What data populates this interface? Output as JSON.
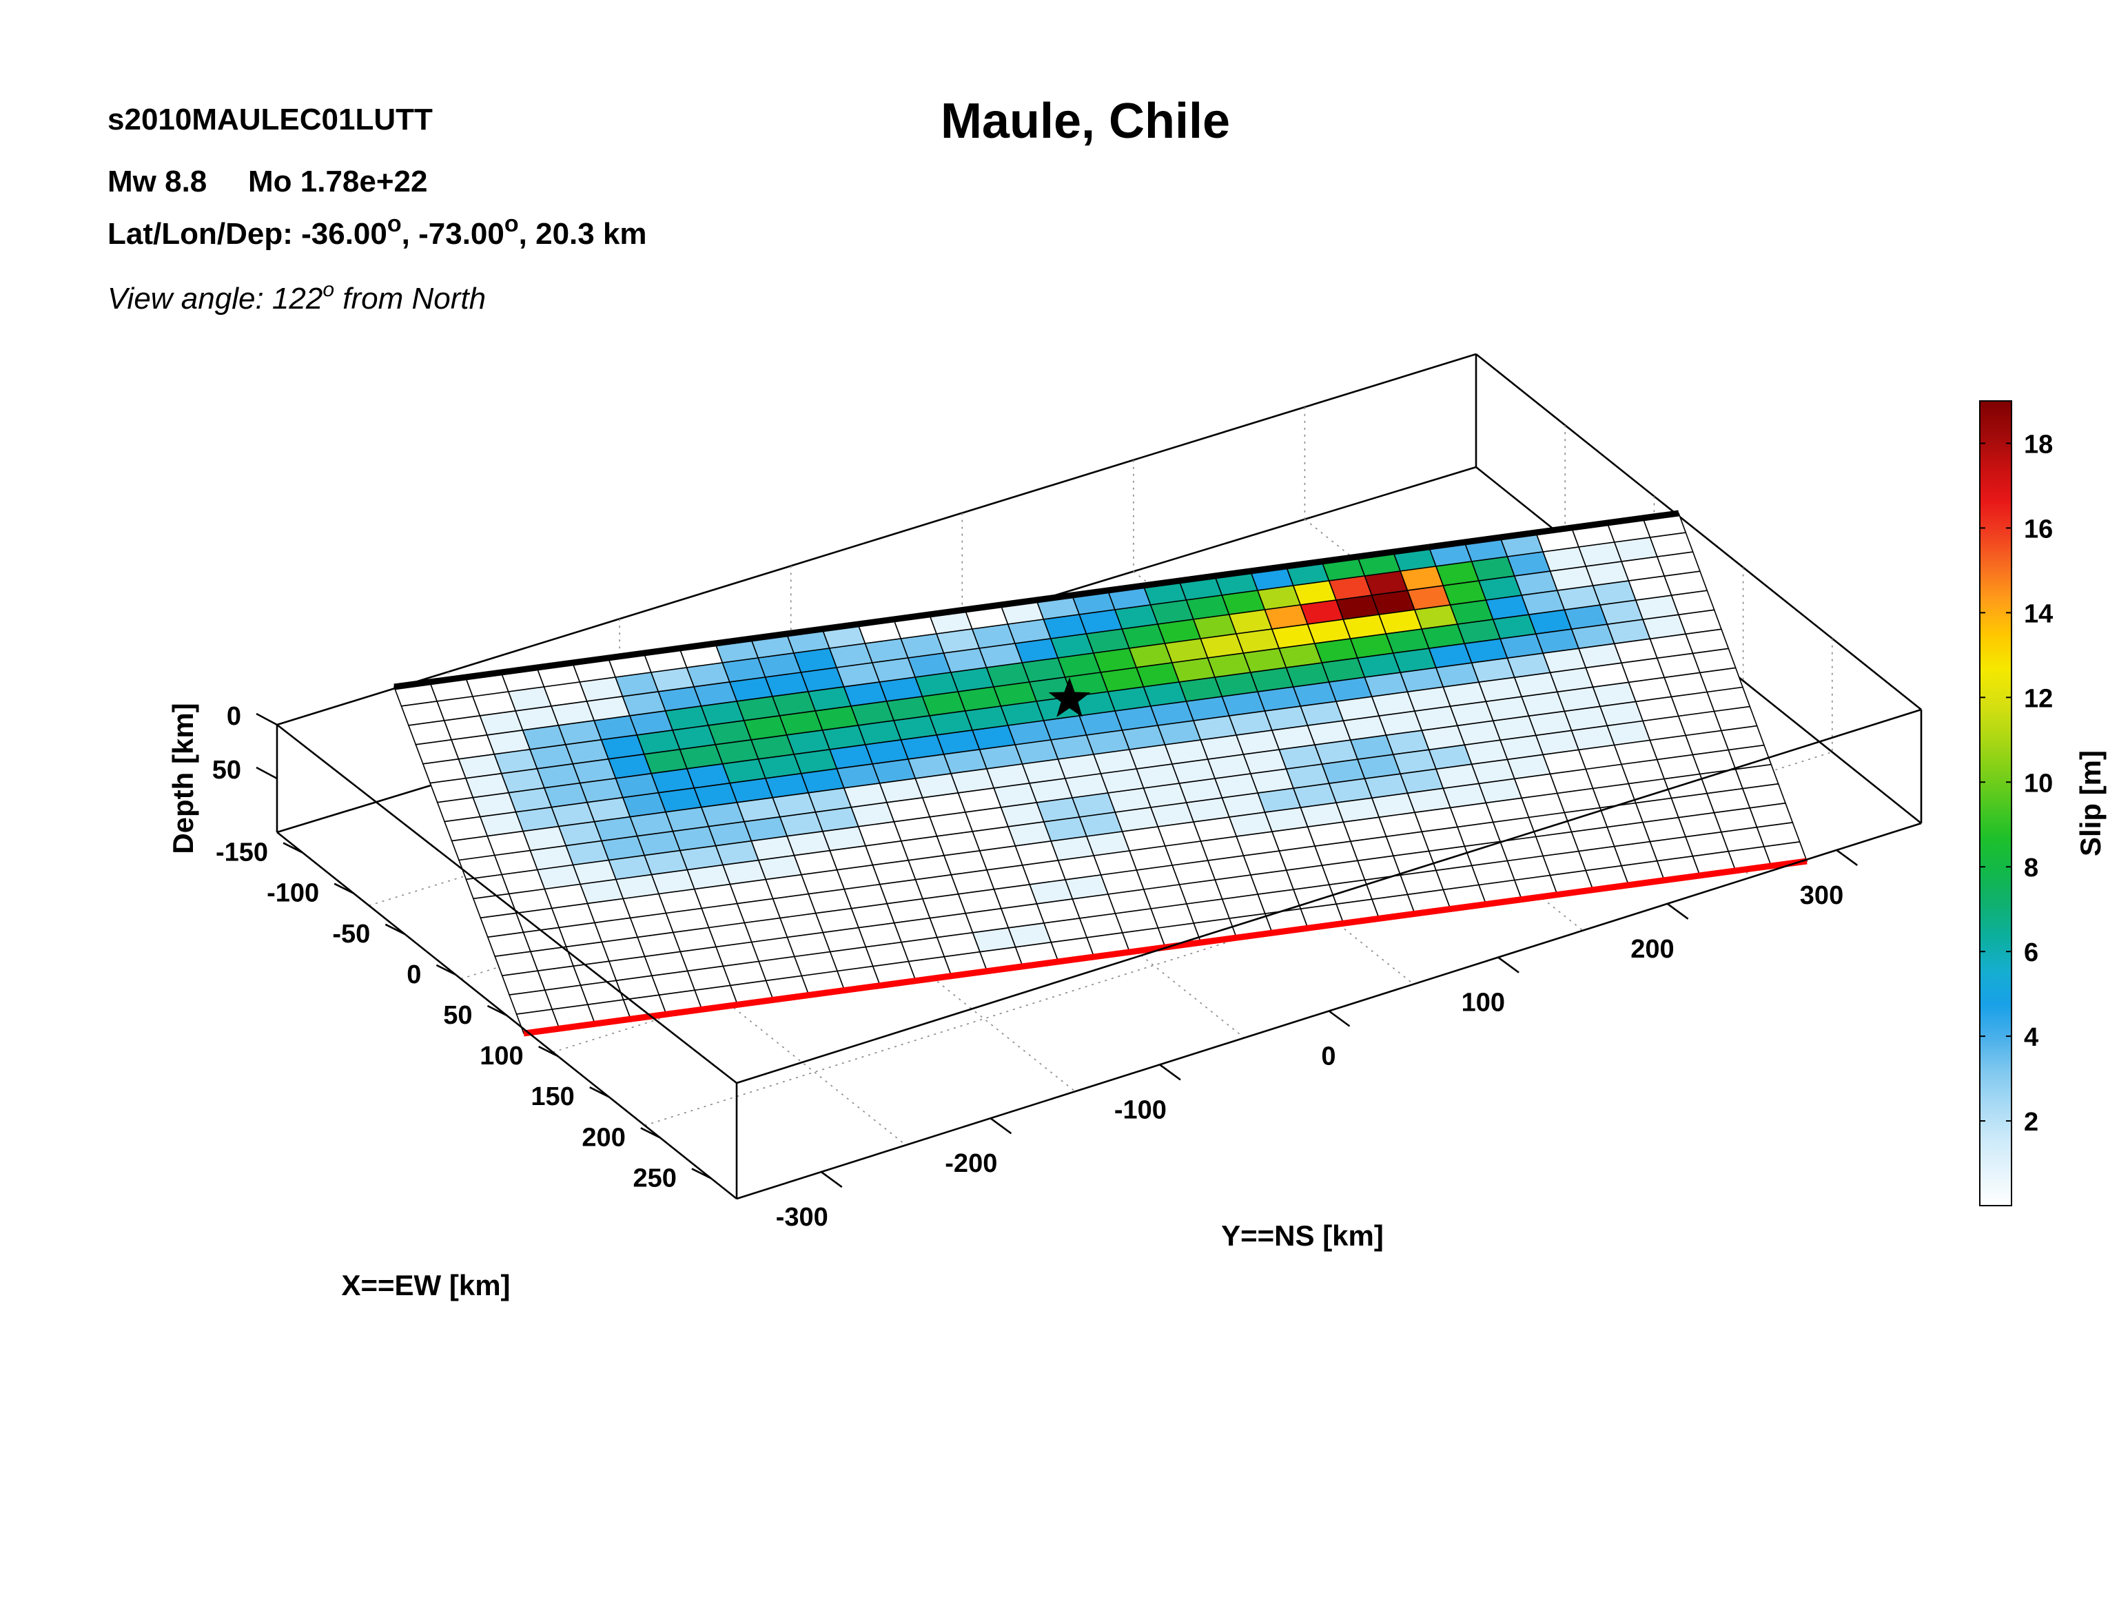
{
  "header": {
    "event_id": "s2010MAULEC01LUTT",
    "mw": "Mw 8.8",
    "mo": "Mo 1.78e+22",
    "location_prefix": "Lat/Lon/Dep: ",
    "lat": "-36.00",
    "lon": "-73.00",
    "dep": "20.3 km",
    "deg_symbol": "o",
    "view_prefix": "View angle: 122",
    "view_sup": "o",
    "view_suffix": " from North"
  },
  "chart_data": {
    "type": "heatmap",
    "title": "Maule, Chile",
    "xlabel": "X==EW [km]",
    "ylabel": "Y==NS [km]",
    "zlabel": "Depth [km]",
    "x_ticks": [
      "-150",
      "-100",
      "-50",
      "0",
      "50",
      "100",
      "150",
      "200",
      "250"
    ],
    "y_ticks": [
      "-300",
      "-200",
      "-100",
      "0",
      "100",
      "200",
      "300"
    ],
    "z_ticks": [
      "0",
      "50"
    ],
    "colorbar": {
      "label": "Slip [m]",
      "min": 0,
      "max": 19,
      "ticks": [
        "2",
        "4",
        "6",
        "8",
        "10",
        "12",
        "14",
        "16",
        "18"
      ],
      "colors": [
        "#ffffff",
        "#e6f4fc",
        "#cceaf9",
        "#a8daf5",
        "#80c8ef",
        "#4ab0ea",
        "#18a0e8",
        "#16aed0",
        "#0caf9e",
        "#10b070",
        "#12b848",
        "#1fc02a",
        "#50c820",
        "#80d018",
        "#b0d814",
        "#d8e010",
        "#f5e800",
        "#ffc800",
        "#ffa018",
        "#f87020",
        "#f04020",
        "#e81818",
        "#c81010",
        "#a00a0a",
        "#800000"
      ]
    },
    "hypocenter": {
      "lat": -36.0,
      "lon": -73.0,
      "depth_km": 20.3
    },
    "grid_rows": 18,
    "grid_cols": 36,
    "slip_rows_m": [
      [
        0,
        0,
        0,
        0,
        0,
        0,
        0,
        0,
        0,
        3,
        3,
        3,
        2,
        0,
        0,
        1,
        0,
        1,
        3,
        4,
        4,
        6,
        6,
        6,
        5,
        6,
        8,
        8,
        6,
        4,
        4,
        3,
        0,
        0,
        0,
        0
      ],
      [
        0,
        0,
        0,
        1,
        0,
        1,
        3,
        2,
        3,
        4,
        4,
        5,
        3,
        3,
        3,
        2,
        3,
        3,
        5,
        5,
        6,
        7,
        8,
        9,
        11,
        13,
        16,
        18,
        14,
        9,
        7,
        4,
        1,
        1,
        1,
        0
      ],
      [
        0,
        0,
        1,
        1,
        1,
        1,
        3,
        4,
        4,
        5,
        5,
        5,
        3,
        3,
        4,
        3,
        3,
        5,
        6,
        7,
        8,
        9,
        10,
        12,
        14,
        17,
        19,
        19,
        15,
        9,
        6,
        3,
        1,
        1,
        0,
        0
      ],
      [
        0,
        0,
        1,
        3,
        3,
        4,
        4,
        6,
        6,
        7,
        7,
        6,
        5,
        5,
        6,
        6,
        7,
        7,
        8,
        9,
        10,
        11,
        12,
        12,
        13,
        13,
        13,
        13,
        11,
        8,
        5,
        3,
        2,
        2,
        0,
        0
      ],
      [
        0,
        1,
        2,
        3,
        3,
        5,
        6,
        6,
        7,
        8,
        8,
        8,
        7,
        7,
        8,
        8,
        8,
        7,
        8,
        9,
        9,
        10,
        10,
        10,
        10,
        9,
        9,
        8,
        8,
        7,
        6,
        5,
        4,
        2,
        1,
        0
      ],
      [
        0,
        1,
        2,
        3,
        3,
        5,
        7,
        7,
        7,
        7,
        6,
        6,
        6,
        6,
        6,
        6,
        6,
        6,
        6,
        6,
        6,
        7,
        7,
        7,
        7,
        7,
        6,
        6,
        5,
        5,
        4,
        4,
        3,
        2,
        1,
        0
      ],
      [
        0,
        1,
        2,
        3,
        3,
        4,
        5,
        5,
        6,
        6,
        6,
        5,
        5,
        5,
        5,
        5,
        4,
        4,
        4,
        4,
        4,
        4,
        4,
        4,
        4,
        4,
        3,
        3,
        3,
        2,
        2,
        1,
        1,
        0,
        0,
        0
      ],
      [
        0,
        1,
        2,
        2,
        2,
        4,
        5,
        5,
        5,
        5,
        5,
        4,
        4,
        3,
        3,
        3,
        3,
        3,
        3,
        3,
        3,
        2,
        2,
        2,
        2,
        1,
        1,
        1,
        1,
        1,
        1,
        1,
        0,
        0,
        0,
        0
      ],
      [
        0,
        0,
        1,
        2,
        3,
        3,
        3,
        3,
        2,
        2,
        2,
        1,
        1,
        1,
        1,
        1,
        1,
        1,
        1,
        1,
        1,
        1,
        1,
        1,
        1,
        1,
        1,
        1,
        1,
        1,
        1,
        1,
        1,
        0,
        0,
        0
      ],
      [
        0,
        0,
        1,
        2,
        3,
        3,
        3,
        3,
        3,
        2,
        2,
        1,
        0,
        0,
        0,
        1,
        1,
        1,
        1,
        1,
        1,
        1,
        1,
        2,
        2,
        3,
        2,
        1,
        1,
        1,
        1,
        1,
        1,
        0,
        0,
        0
      ],
      [
        0,
        0,
        1,
        1,
        2,
        2,
        2,
        2,
        1,
        1,
        1,
        0,
        0,
        0,
        0,
        1,
        2,
        2,
        1,
        1,
        1,
        1,
        1,
        2,
        3,
        3,
        2,
        2,
        1,
        1,
        1,
        1,
        1,
        0,
        0,
        0
      ],
      [
        0,
        0,
        0,
        1,
        1,
        1,
        1,
        1,
        1,
        0,
        0,
        0,
        0,
        0,
        0,
        1,
        2,
        2,
        1,
        1,
        1,
        1,
        2,
        2,
        2,
        2,
        2,
        1,
        1,
        1,
        0,
        0,
        0,
        0,
        0,
        0
      ],
      [
        0,
        0,
        0,
        0,
        0,
        0,
        0,
        0,
        0,
        0,
        0,
        0,
        0,
        0,
        0,
        0,
        1,
        1,
        0,
        0,
        0,
        1,
        1,
        1,
        1,
        1,
        1,
        1,
        1,
        0,
        0,
        0,
        0,
        0,
        0,
        0
      ],
      [
        0,
        0,
        0,
        0,
        0,
        0,
        0,
        0,
        0,
        0,
        0,
        0,
        0,
        0,
        0,
        0,
        0,
        0,
        0,
        0,
        0,
        0,
        0,
        0,
        0,
        0,
        0,
        0,
        0,
        0,
        0,
        0,
        0,
        0,
        0,
        0
      ],
      [
        0,
        0,
        0,
        0,
        0,
        0,
        0,
        0,
        0,
        0,
        0,
        0,
        0,
        0,
        0,
        1,
        1,
        0,
        0,
        0,
        0,
        0,
        0,
        0,
        0,
        0,
        0,
        0,
        0,
        0,
        0,
        0,
        0,
        0,
        0,
        0
      ],
      [
        0,
        0,
        0,
        0,
        0,
        0,
        0,
        0,
        0,
        0,
        0,
        0,
        0,
        0,
        0,
        0,
        0,
        0,
        0,
        0,
        0,
        0,
        0,
        0,
        0,
        0,
        0,
        0,
        0,
        0,
        0,
        0,
        0,
        0,
        0,
        0
      ],
      [
        0,
        0,
        0,
        0,
        0,
        0,
        0,
        0,
        0,
        0,
        0,
        0,
        0,
        1,
        1,
        0,
        0,
        0,
        0,
        0,
        0,
        0,
        0,
        0,
        0,
        0,
        0,
        0,
        0,
        0,
        0,
        0,
        0,
        0,
        0,
        0
      ],
      [
        0,
        0,
        0,
        0,
        0,
        0,
        0,
        0,
        0,
        0,
        0,
        0,
        0,
        0,
        0,
        0,
        0,
        0,
        0,
        0,
        0,
        0,
        0,
        0,
        0,
        0,
        0,
        0,
        0,
        0,
        0,
        0,
        0,
        0,
        0,
        0
      ]
    ]
  }
}
